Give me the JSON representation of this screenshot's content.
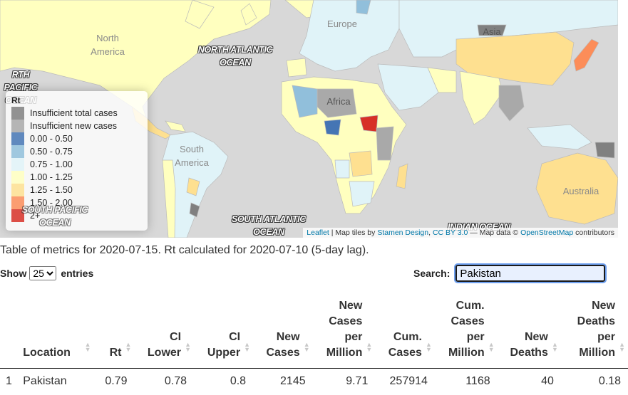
{
  "map": {
    "continent_labels": {
      "north_america": "North\nAmerica",
      "south_america": "South\nAmerica",
      "africa": "Africa",
      "europe": "Europe",
      "asia": "Asia",
      "australia": "Australia"
    },
    "ocean_labels": {
      "north_atlantic": "NORTH ATLANTIC\nOCEAN",
      "north_pacific": "RTH PACIFIC\nOCEAN",
      "south_pacific": "SOUTH PACIFIC\nOCEAN",
      "south_atlantic": "SOUTH ATLANTIC\nOCEAN",
      "indian": "INDIAN OCEAN"
    },
    "attribution": {
      "leaflet": "Leaflet",
      "sep1": " | Map tiles by ",
      "stamen": "Stamen Design",
      "sep2": ", ",
      "license": "CC BY 3.0",
      "sep3": " — Map data © ",
      "osm": "OpenStreetMap",
      "sep4": " contributors"
    },
    "legend": {
      "title": "Rt",
      "items": [
        {
          "label": "Insufficient total cases",
          "color": "#808080"
        },
        {
          "label": "Insufficient new cases",
          "color": "#a9a9a9"
        },
        {
          "label": "0.00 - 0.50",
          "color": "#4575b4"
        },
        {
          "label": "0.50 - 0.75",
          "color": "#91bfdb"
        },
        {
          "label": "0.75 - 1.00",
          "color": "#e0f3f8"
        },
        {
          "label": "1.00 - 1.25",
          "color": "#ffffbf"
        },
        {
          "label": "1.25 - 1.50",
          "color": "#fee090"
        },
        {
          "label": "1.50 - 2.00",
          "color": "#fc8d59"
        },
        {
          "label": "2+",
          "color": "#d73027"
        }
      ]
    }
  },
  "caption": "Table of metrics for 2020-07-15. Rt calculated for 2020-07-10 (5-day lag).",
  "length_menu": {
    "show": "Show",
    "value": "25",
    "entries": "entries"
  },
  "search": {
    "label": "Search:",
    "value": "Pakistan"
  },
  "table": {
    "headers": [
      "",
      "Location",
      "Rt",
      "CI\nLower",
      "CI\nUpper",
      "New\nCases",
      "New\nCases\nper\nMillion",
      "Cum.\nCases",
      "Cum.\nCases\nper\nMillion",
      "New\nDeaths",
      "New\nDeaths\nper\nMillion"
    ],
    "rows": [
      [
        "1",
        "Pakistan",
        "0.79",
        "0.78",
        "0.8",
        "2145",
        "9.71",
        "257914",
        "1168",
        "40",
        "0.18"
      ]
    ]
  }
}
